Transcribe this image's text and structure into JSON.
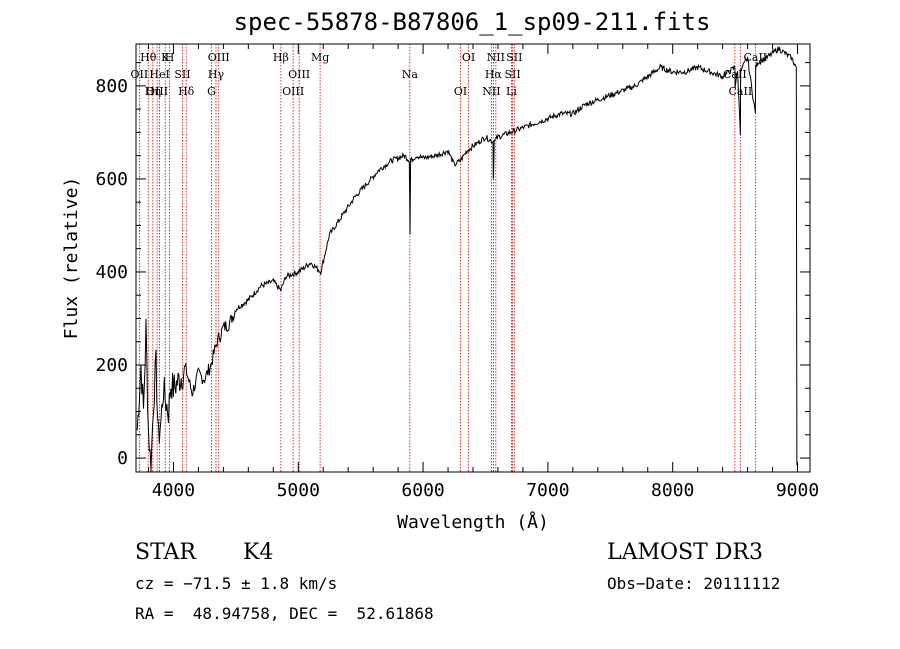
{
  "chart_data": {
    "type": "line",
    "title": "spec-55878-B87806_1_sp09-211.fits",
    "xlabel": "Wavelength (Å)",
    "ylabel": "Flux (relative)",
    "xlim": [
      3700,
      9100
    ],
    "ylim": [
      -30,
      890
    ],
    "x_ticks": [
      4000,
      5000,
      6000,
      7000,
      8000,
      9000
    ],
    "x_tick_labels": [
      "4000",
      "5000",
      "6000",
      "7000",
      "8000",
      "9000"
    ],
    "y_ticks": [
      0,
      200,
      400,
      600,
      800
    ],
    "y_tick_labels": [
      "0",
      "200",
      "400",
      "600",
      "800"
    ],
    "series": [
      {
        "name": "spectrum",
        "x": [
          3710,
          3740,
          3760,
          3780,
          3800,
          3820,
          3840,
          3860,
          3880,
          3900,
          3920,
          3940,
          3960,
          3980,
          4000,
          4050,
          4100,
          4150,
          4200,
          4250,
          4300,
          4350,
          4400,
          4450,
          4500,
          4600,
          4700,
          4800,
          4860,
          4900,
          5000,
          5100,
          5180,
          5250,
          5350,
          5450,
          5550,
          5650,
          5750,
          5850,
          5890,
          5895,
          5900,
          5950,
          6000,
          6100,
          6200,
          6250,
          6300,
          6350,
          6400,
          6500,
          6560,
          6563,
          6570,
          6600,
          6700,
          6800,
          6900,
          7000,
          7100,
          7200,
          7300,
          7400,
          7500,
          7600,
          7700,
          7800,
          7900,
          8000,
          8100,
          8200,
          8300,
          8400,
          8450,
          8498,
          8500,
          8520,
          8542,
          8545,
          8560,
          8600,
          8662,
          8665,
          8680,
          8750,
          8800,
          8850,
          8900,
          8950,
          8990
        ],
        "y": [
          60,
          200,
          100,
          280,
          60,
          -20,
          120,
          200,
          40,
          80,
          150,
          120,
          100,
          160,
          150,
          170,
          190,
          140,
          180,
          170,
          200,
          250,
          280,
          290,
          320,
          340,
          370,
          380,
          360,
          390,
          400,
          420,
          400,
          480,
          520,
          560,
          590,
          620,
          640,
          650,
          640,
          480,
          640,
          650,
          645,
          650,
          660,
          630,
          640,
          660,
          670,
          690,
          680,
          600,
          680,
          690,
          700,
          710,
          720,
          730,
          740,
          740,
          760,
          770,
          780,
          790,
          800,
          820,
          840,
          830,
          830,
          840,
          830,
          820,
          830,
          840,
          800,
          830,
          700,
          830,
          840,
          860,
          740,
          840,
          850,
          860,
          870,
          880,
          870,
          860,
          840
        ]
      }
    ],
    "line_markers": [
      {
        "name": "Hθ",
        "x": 3798
      },
      {
        "name": "OII",
        "x": 3727
      },
      {
        "name": "OIII",
        "x": 3869
      },
      {
        "name": "K",
        "x": 3934
      },
      {
        "name": "HeI",
        "x": 3889
      },
      {
        "name": "Hη",
        "x": 3835
      },
      {
        "name": "H",
        "x": 3969
      },
      {
        "name": "SII",
        "x": 4072
      },
      {
        "name": "Hδ",
        "x": 4102
      },
      {
        "name": "OIII",
        "x": 4363
      },
      {
        "name": "Hγ",
        "x": 4341
      },
      {
        "name": "G",
        "x": 4305
      },
      {
        "name": "Hβ",
        "x": 4861
      },
      {
        "name": "OIII",
        "x": 5007
      },
      {
        "name": "OIII",
        "x": 4959
      },
      {
        "name": "Mg",
        "x": 5175
      },
      {
        "name": "Na",
        "x": 5894
      },
      {
        "name": "OI",
        "x": 6300
      },
      {
        "name": "OI",
        "x": 6364
      },
      {
        "name": "Hα",
        "x": 6563
      },
      {
        "name": "NII",
        "x": 6548
      },
      {
        "name": "NII",
        "x": 6583
      },
      {
        "name": "SII",
        "x": 6717
      },
      {
        "name": "Li",
        "x": 6708
      },
      {
        "name": "SII",
        "x": 6731
      },
      {
        "name": "CaII",
        "x": 8498
      },
      {
        "name": "CaII",
        "x": 8542
      },
      {
        "name": "CaII",
        "x": 8662
      }
    ]
  },
  "info": {
    "class": "STAR",
    "subclass": "K4",
    "cz": "cz = −71.5 ± 1.8 km/s",
    "coords": "RA =  48.94758, DEC =  52.61868",
    "survey": "LAMOST DR3",
    "obs_date": "Obs−Date: 20111112"
  },
  "colors": {
    "axis": "#000000",
    "spectrum": "#000000",
    "marker_line": "#cc0000"
  }
}
